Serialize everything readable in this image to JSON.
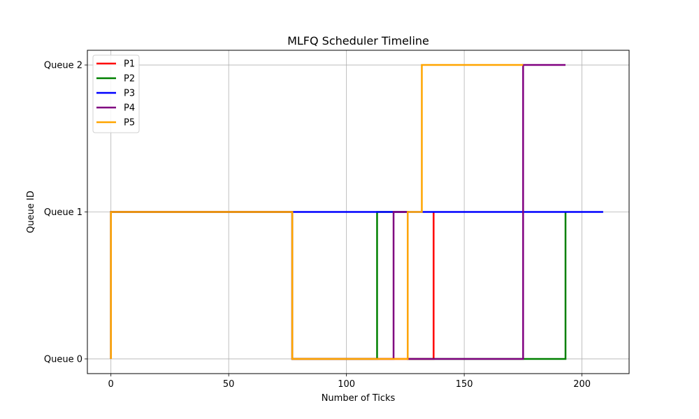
{
  "chart_data": {
    "type": "line",
    "title": "MLFQ Scheduler Timeline",
    "xlabel": "Number of Ticks",
    "ylabel": "Queue ID",
    "xlim": [
      -10,
      220
    ],
    "ylim": [
      -0.1,
      2.1
    ],
    "xticks": [
      0,
      50,
      100,
      150,
      200
    ],
    "yticks": [
      {
        "value": 0,
        "label": "Queue 0"
      },
      {
        "value": 1,
        "label": "Queue 1"
      },
      {
        "value": 2,
        "label": "Queue 2"
      }
    ],
    "grid": true,
    "legend_position": "top-left",
    "series": [
      {
        "name": "P1",
        "color": "#ff0000",
        "x": [
          0,
          0,
          77,
          77,
          137,
          137
        ],
        "y": [
          0,
          1,
          1,
          0,
          0,
          1
        ]
      },
      {
        "name": "P2",
        "color": "#008000",
        "x": [
          0,
          0,
          77,
          77,
          113,
          113,
          126,
          126,
          193,
          193
        ],
        "y": [
          0,
          1,
          1,
          0,
          0,
          1,
          1,
          0,
          0,
          1
        ]
      },
      {
        "name": "P3",
        "color": "#0000ff",
        "x": [
          0,
          0,
          209
        ],
        "y": [
          0,
          1,
          1
        ]
      },
      {
        "name": "P4",
        "color": "#800080",
        "x": [
          0,
          0,
          77,
          77,
          120,
          120,
          126,
          126,
          175,
          175,
          193
        ],
        "y": [
          0,
          1,
          1,
          0,
          0,
          1,
          1,
          0,
          0,
          2,
          2
        ]
      },
      {
        "name": "P5",
        "color": "#ffa500",
        "x": [
          0,
          0,
          77,
          77,
          126,
          126,
          132,
          132,
          175
        ],
        "y": [
          0,
          1,
          1,
          0,
          0,
          1,
          1,
          2,
          2
        ]
      }
    ]
  }
}
